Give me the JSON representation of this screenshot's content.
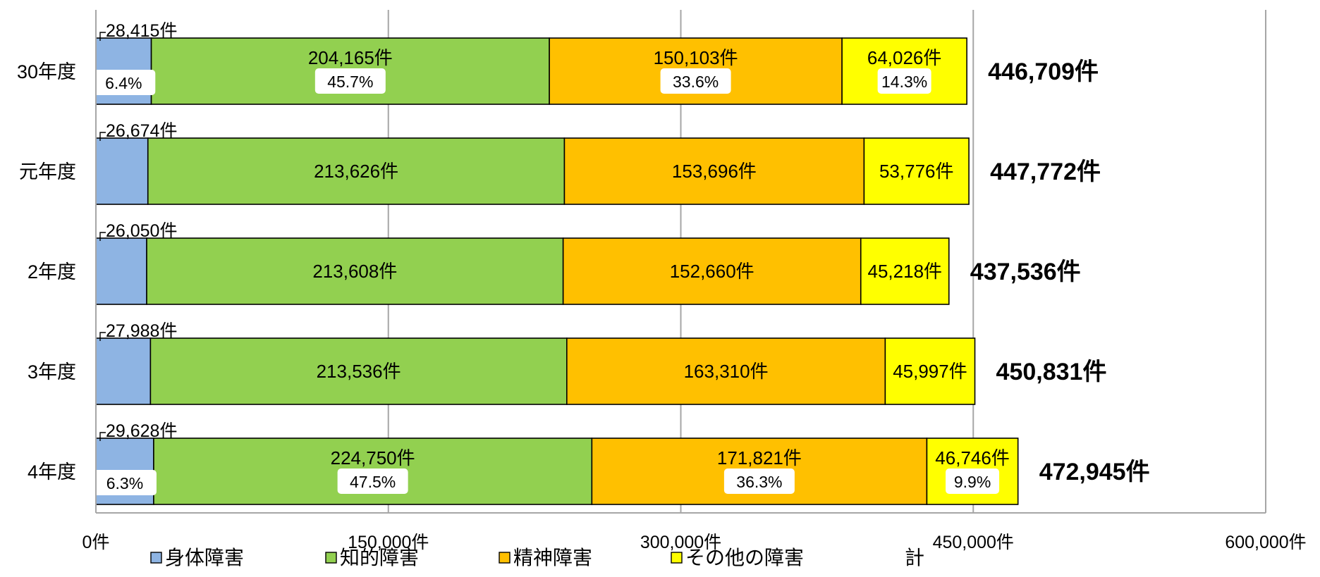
{
  "chart_data": {
    "type": "bar",
    "orientation": "horizontal",
    "stacked": true,
    "categories": [
      "30年度",
      "元年度",
      "2年度",
      "3年度",
      "4年度"
    ],
    "series": [
      {
        "name": "身体障害",
        "color": "#8EB4E3",
        "values": [
          28415,
          26674,
          26050,
          27988,
          29628
        ],
        "value_labels": [
          "28,415件",
          "26,674件",
          "26,050件",
          "27,988件",
          "29,628件"
        ],
        "pct_labels": [
          "6.4%",
          null,
          null,
          null,
          "6.3%"
        ]
      },
      {
        "name": "知的障害",
        "color": "#92D050",
        "values": [
          204165,
          213626,
          213608,
          213536,
          224750
        ],
        "value_labels": [
          "204,165件",
          "213,626件",
          "213,608件",
          "213,536件",
          "224,750件"
        ],
        "pct_labels": [
          "45.7%",
          null,
          null,
          null,
          "47.5%"
        ]
      },
      {
        "name": "精神障害",
        "color": "#FFC000",
        "values": [
          150103,
          153696,
          152660,
          163310,
          171821
        ],
        "value_labels": [
          "150,103件",
          "153,696件",
          "152,660件",
          "163,310件",
          "171,821件"
        ],
        "pct_labels": [
          "33.6%",
          null,
          null,
          null,
          "36.3%"
        ]
      },
      {
        "name": "その他の障害",
        "color": "#FFFF00",
        "values": [
          64026,
          53776,
          45218,
          45997,
          46746
        ],
        "value_labels": [
          "64,026件",
          "53,776件",
          "45,218件",
          "45,997件",
          "46,746件"
        ],
        "pct_labels": [
          "14.3%",
          null,
          null,
          null,
          "9.9%"
        ]
      }
    ],
    "totals": [
      446709,
      447772,
      437536,
      450831,
      472945
    ],
    "total_labels": [
      "446,709件",
      "447,772件",
      "437,536件",
      "450,831件",
      "472,945件"
    ],
    "total_legend_label": "計",
    "xlim": [
      0,
      600000
    ],
    "x_ticks": [
      0,
      150000,
      300000,
      450000,
      600000
    ],
    "x_tick_labels": [
      "0件",
      "150,000件",
      "300,000件",
      "450,000件",
      "600,000件"
    ],
    "grid": true,
    "legend_position": "bottom"
  }
}
